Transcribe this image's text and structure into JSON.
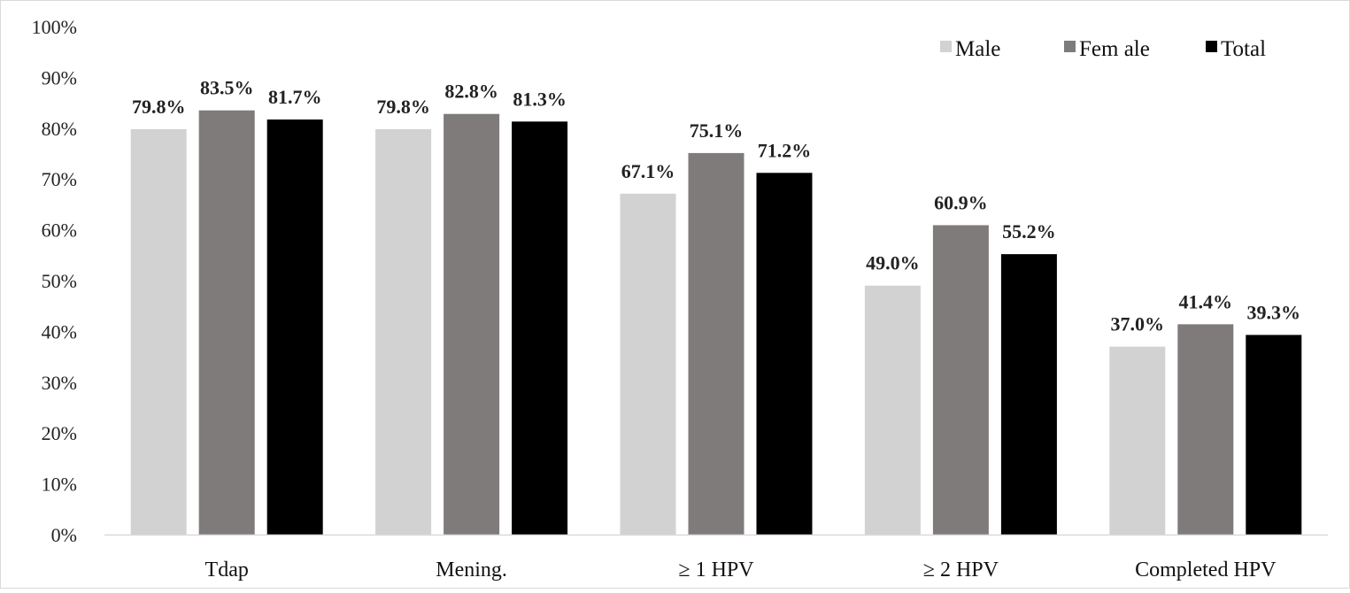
{
  "chart_data": {
    "type": "bar",
    "categories": [
      "Tdap",
      "Mening.",
      "≥ 1 HPV",
      "≥ 2 HPV",
      "Completed HPV"
    ],
    "series": [
      {
        "name": "Male",
        "values": [
          79.8,
          79.8,
          67.1,
          49.0,
          37.0
        ],
        "labels": [
          "79.8%",
          "79.8%",
          "67.1%",
          "49.0%",
          "37.0%"
        ],
        "color": "#d2d2d2"
      },
      {
        "name": "Fem ale",
        "values": [
          83.5,
          82.8,
          75.1,
          60.9,
          41.4
        ],
        "labels": [
          "83.5%",
          "82.8%",
          "75.1%",
          "60.9%",
          "41.4%"
        ],
        "color": "#7f7b7b"
      },
      {
        "name": "Total",
        "values": [
          81.7,
          81.3,
          71.2,
          55.2,
          39.3
        ],
        "labels": [
          "81.7%",
          "81.3%",
          "71.2%",
          "55.2%",
          "39.3%"
        ],
        "color": "#000000"
      }
    ],
    "title": "",
    "xlabel": "",
    "ylabel": "",
    "ylim": [
      0,
      100
    ],
    "yticks": [
      "0%",
      "10%",
      "20%",
      "30%",
      "40%",
      "50%",
      "60%",
      "70%",
      "80%",
      "90%",
      "100%"
    ],
    "grid": false,
    "legend_position": "top-right"
  }
}
